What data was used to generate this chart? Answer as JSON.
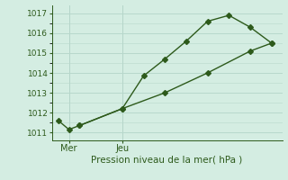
{
  "line1_x": [
    0,
    0.5,
    1,
    3,
    4,
    5,
    6,
    7,
    8,
    9,
    10
  ],
  "line1_y": [
    1011.6,
    1011.15,
    1011.35,
    1012.2,
    1013.85,
    1014.7,
    1015.6,
    1016.6,
    1016.9,
    1016.3,
    1015.5
  ],
  "line2_x": [
    1,
    3,
    5,
    7,
    9,
    10
  ],
  "line2_y": [
    1011.35,
    1012.2,
    1013.0,
    1014.0,
    1015.1,
    1015.5
  ],
  "line_color": "#2d5a1b",
  "bg_color": "#d4ede2",
  "grid_color": "#b8d8cc",
  "yticks": [
    1011,
    1012,
    1013,
    1014,
    1015,
    1016,
    1017
  ],
  "ylim": [
    1010.6,
    1017.4
  ],
  "xlim": [
    -0.3,
    10.5
  ],
  "xlabel": "Pression niveau de la mer( hPa )",
  "mer_x": 0.5,
  "jeu_x": 3.0,
  "vline1_x": 0.5,
  "vline2_x": 3.0,
  "marker_size": 3.0,
  "ytick_fontsize": 6.5,
  "xtick_fontsize": 7.0,
  "xlabel_fontsize": 7.5
}
